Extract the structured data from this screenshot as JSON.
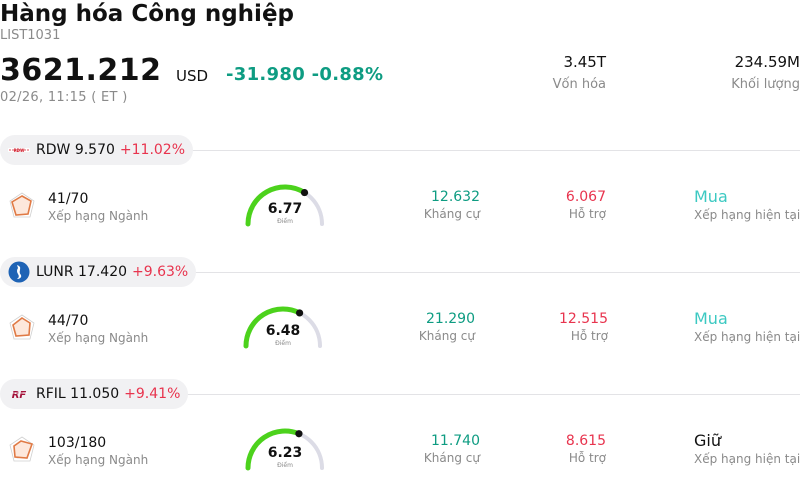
{
  "header": {
    "title": "Hàng hóa Công nghiệp",
    "code": "LIST1031",
    "price": "3621.212",
    "currency": "USD",
    "change": "-31.980",
    "change_pct": "-0.88%",
    "time": "02/26, 11:15  ( ET )",
    "market_cap_value": "3.45T",
    "market_cap_label": "Vốn hóa",
    "volume_value": "234.59M",
    "volume_label": "Khối lượng"
  },
  "colors": {
    "up": "#e8344e",
    "down": "#0e9c82",
    "buy": "#3cc9c2",
    "gauge_fill": "#4cd21c",
    "gauge_track": "#dcdce6"
  },
  "stocks": [
    {
      "ticker": "RDW",
      "price": "9.570",
      "change_pct": "+11.02%",
      "logo_icon": "redwire-logo-icon",
      "industry_rank": "41/70",
      "industry_rank_label": "Xếp hạng Ngành",
      "score": "6.77",
      "score_value": 6.77,
      "score_label": "Điểm",
      "resistance": "12.632",
      "resistance_label": "Kháng cự",
      "support": "6.067",
      "support_label": "Hỗ trợ",
      "rating": "Mua",
      "rating_label": "Xếp hạng hiện tại"
    },
    {
      "ticker": "LUNR",
      "price": "17.420",
      "change_pct": "+9.63%",
      "logo_icon": "intuitive-machines-logo-icon",
      "industry_rank": "44/70",
      "industry_rank_label": "Xếp hạng Ngành",
      "score": "6.48",
      "score_value": 6.48,
      "score_label": "Điểm",
      "resistance": "21.290",
      "resistance_label": "Kháng cự",
      "support": "12.515",
      "support_label": "Hỗ trợ",
      "rating": "Mua",
      "rating_label": "Xếp hạng hiện tại"
    },
    {
      "ticker": "RFIL",
      "price": "11.050",
      "change_pct": "+9.41%",
      "logo_icon": "rf-industries-logo-icon",
      "industry_rank": "103/180",
      "industry_rank_label": "Xếp hạng Ngành",
      "score": "6.23",
      "score_value": 6.23,
      "score_label": "Điểm",
      "resistance": "11.740",
      "resistance_label": "Kháng cự",
      "support": "8.615",
      "support_label": "Hỗ trợ",
      "rating": "Giữ",
      "rating_label": "Xếp hạng hiện tại"
    }
  ]
}
